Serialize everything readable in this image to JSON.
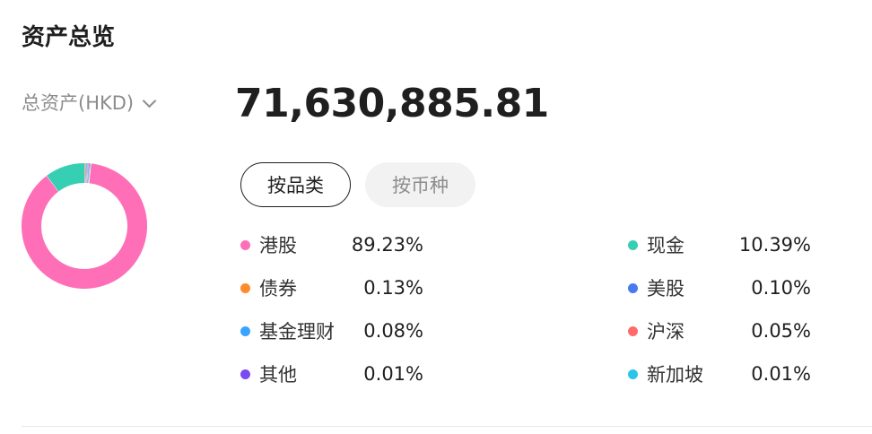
{
  "header": {
    "title": "资产总览"
  },
  "summary": {
    "total_label": "总资产(HKD)",
    "total_value": "71,630,885.81"
  },
  "tabs": [
    {
      "label": "按品类",
      "active": true
    },
    {
      "label": "按币种",
      "active": false
    }
  ],
  "legend_left": [
    {
      "label": "港股",
      "percent": "89.23%",
      "value": 89.23,
      "color": "#ff6fb7"
    },
    {
      "label": "债券",
      "percent": "0.13%",
      "value": 0.13,
      "color": "#ff8c2a"
    },
    {
      "label": "基金理财",
      "percent": "0.08%",
      "value": 0.08,
      "color": "#3aa3ff"
    },
    {
      "label": "其他",
      "percent": "0.01%",
      "value": 0.01,
      "color": "#7a4cf0"
    }
  ],
  "legend_right": [
    {
      "label": "现金",
      "percent": "10.39%",
      "value": 10.39,
      "color": "#36cfb3"
    },
    {
      "label": "美股",
      "percent": "0.10%",
      "value": 0.1,
      "color": "#4a78f0"
    },
    {
      "label": "沪深",
      "percent": "0.05%",
      "value": 0.05,
      "color": "#ff6b6b"
    },
    {
      "label": "新加坡",
      "percent": "0.01%",
      "value": 0.01,
      "color": "#2bc4ea"
    }
  ],
  "chart_data": {
    "type": "pie",
    "categories": [
      "港股",
      "现金",
      "债券",
      "美股",
      "基金理财",
      "沪深",
      "其他",
      "新加坡"
    ],
    "values": [
      89.23,
      10.39,
      0.13,
      0.1,
      0.08,
      0.05,
      0.01,
      0.01
    ],
    "colors": [
      "#ff6fb7",
      "#36cfb3",
      "#ff8c2a",
      "#4a78f0",
      "#3aa3ff",
      "#ff6b6b",
      "#7a4cf0",
      "#2bc4ea"
    ]
  }
}
